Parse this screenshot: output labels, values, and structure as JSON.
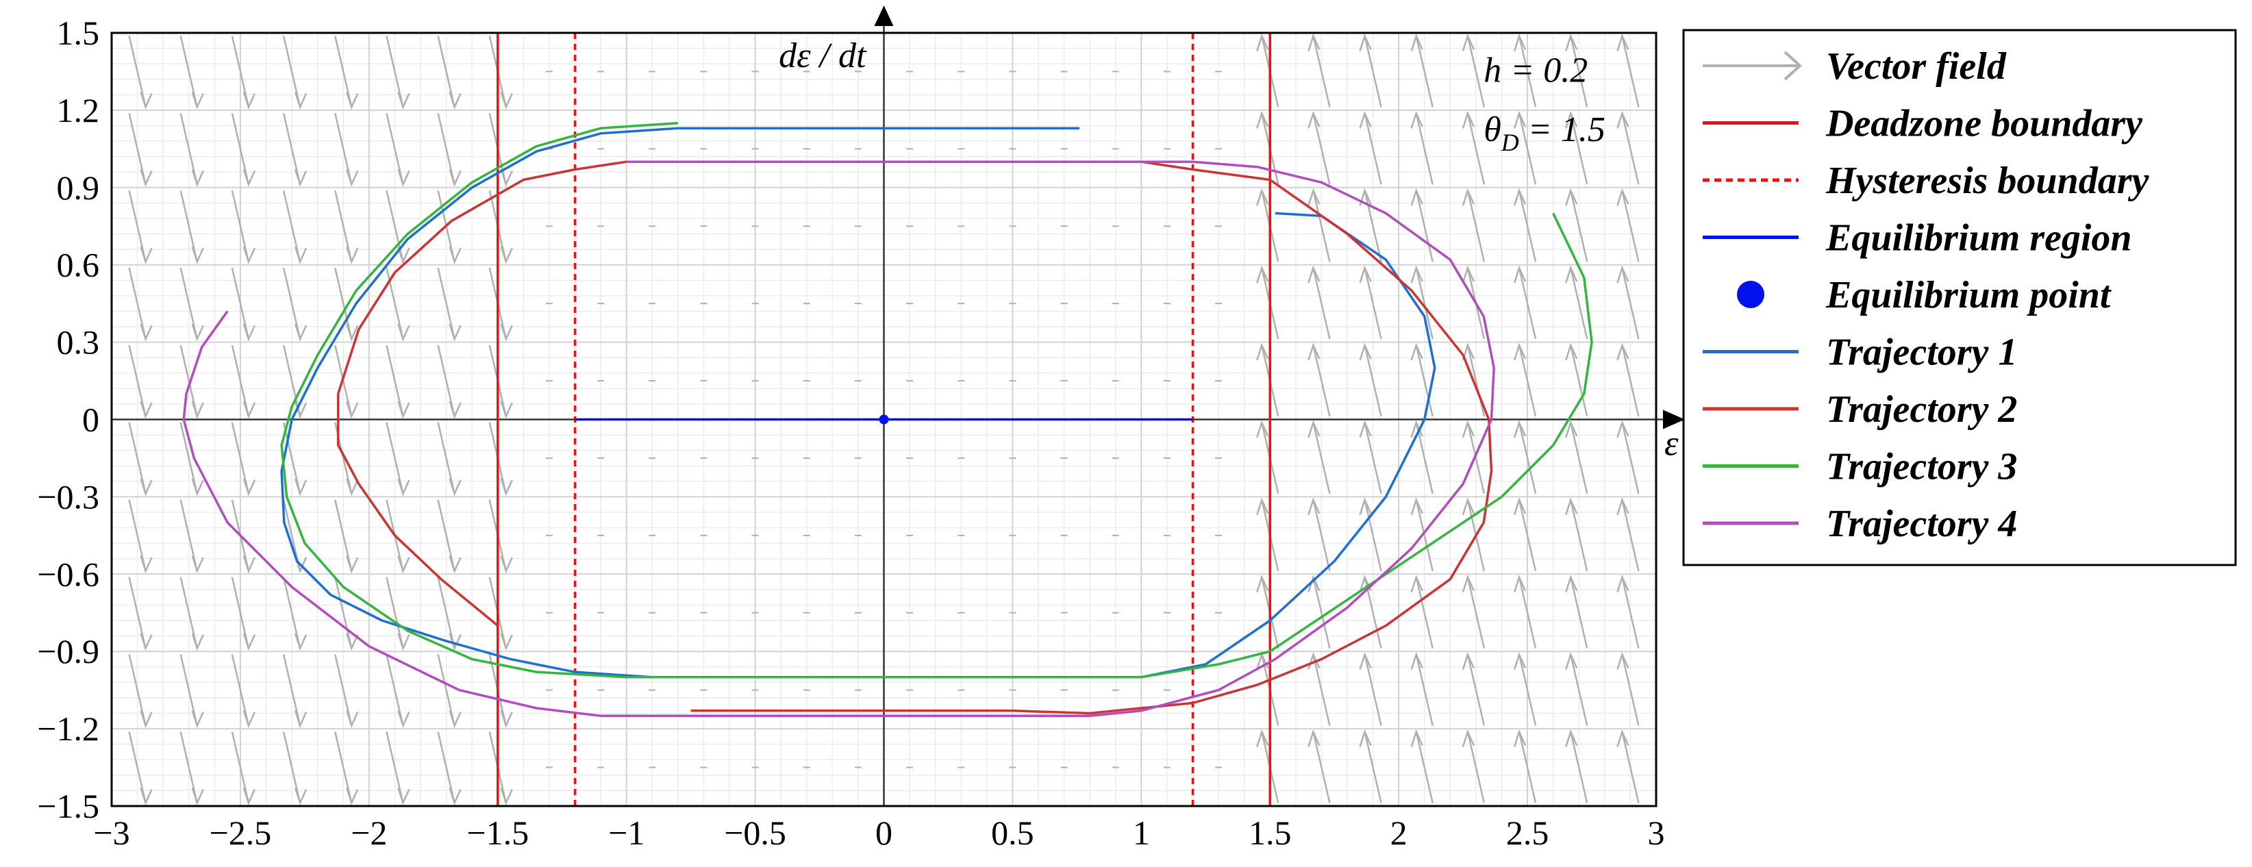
{
  "chart_data": {
    "type": "line",
    "title": "",
    "xlabel": "ε",
    "ylabel": "dε / dt",
    "xlim": [
      -3,
      3
    ],
    "ylim": [
      -1.5,
      1.5
    ],
    "xticks": [
      -3,
      -2.5,
      -2,
      -1.5,
      -1,
      -0.5,
      0,
      0.5,
      1,
      1.5,
      2,
      2.5,
      3
    ],
    "xtick_labels": [
      "−3",
      "−2.5",
      "−2",
      "−1.5",
      "−1",
      "−0.5",
      "0",
      "0.5",
      "1",
      "1.5",
      "2",
      "2.5",
      "3"
    ],
    "yticks": [
      -1.5,
      -1.2,
      -0.9,
      -0.6,
      -0.3,
      0,
      0.3,
      0.6,
      0.9,
      1.2,
      1.5
    ],
    "ytick_labels": [
      "−1.5",
      "−1.2",
      "−0.9",
      "−0.6",
      "−0.3",
      "0",
      "0.3",
      "0.6",
      "0.9",
      "1.2",
      "1.5"
    ],
    "grid": true,
    "legend_position": "outside-right",
    "annotations": {
      "h_label": "h = 0.2",
      "theta_label": "θ",
      "theta_sub": "D",
      "theta_value": " = 1.5"
    },
    "parameters": {
      "h": 0.2,
      "theta_D": 1.5
    },
    "legend": [
      {
        "name": "Vector field",
        "color": "#b0b0b0",
        "style": "arrow"
      },
      {
        "name": "Deadzone boundary",
        "color": "#ee1111",
        "style": "solid"
      },
      {
        "name": "Hysteresis boundary",
        "color": "#ee1111",
        "style": "dotted"
      },
      {
        "name": "Equilibrium region",
        "color": "#0011ee",
        "style": "solid"
      },
      {
        "name": "Equilibrium point",
        "color": "#0011ee",
        "style": "dot"
      },
      {
        "name": "Trajectory 1",
        "color": "#1f6fd0",
        "style": "solid"
      },
      {
        "name": "Trajectory 2",
        "color": "#cc3333",
        "style": "solid"
      },
      {
        "name": "Trajectory 3",
        "color": "#33b540",
        "style": "solid"
      },
      {
        "name": "Trajectory 4",
        "color": "#b24cc0",
        "style": "solid"
      }
    ],
    "deadzone_boundary": {
      "x": [
        -1.5,
        1.5
      ],
      "color": "#ee1111"
    },
    "hysteresis_boundary": {
      "x": [
        -1.2,
        1.2
      ],
      "color": "#ee1111"
    },
    "equilibrium_region": {
      "x": [
        -1.2,
        1.2
      ],
      "y": 0,
      "color": "#0011ee"
    },
    "equilibrium_point": {
      "x": 0,
      "y": 0,
      "color": "#0011ee"
    },
    "vector_field": {
      "color": "#b0b0b0",
      "x_grid": [
        -2.9,
        -2.7,
        -2.5,
        -2.3,
        -2.1,
        -1.9,
        -1.7,
        -1.5,
        -1.3,
        -1.1,
        -0.9,
        -0.7,
        -0.5,
        -0.3,
        -0.1,
        0.1,
        0.3,
        0.5,
        0.7,
        0.9,
        1.1,
        1.3,
        1.5,
        1.7,
        1.9,
        2.1,
        2.3,
        2.5,
        2.7,
        2.9
      ],
      "y_grid": [
        1.35,
        1.05,
        0.75,
        0.45,
        0.15,
        -0.15,
        -0.45,
        -0.75,
        -1.05,
        -1.35
      ]
    },
    "series": [
      {
        "name": "Trajectory 1",
        "color": "#1f6fd0",
        "x": [
          0.76,
          0.2,
          -0.4,
          -0.8,
          -1.1,
          -1.35,
          -1.6,
          -1.85,
          -2.05,
          -2.2,
          -2.3,
          -2.34,
          -2.33,
          -2.28,
          -2.15,
          -1.95,
          -1.7,
          -1.45,
          -1.2,
          -0.9,
          -0.5,
          0,
          0.5,
          1.0,
          1.25,
          1.5,
          1.75,
          1.95,
          2.1,
          2.14,
          2.1,
          1.95,
          1.7,
          1.52
        ],
        "y": [
          1.13,
          1.13,
          1.13,
          1.13,
          1.11,
          1.04,
          0.9,
          0.7,
          0.45,
          0.2,
          0,
          -0.2,
          -0.4,
          -0.55,
          -0.68,
          -0.78,
          -0.86,
          -0.93,
          -0.98,
          -1.0,
          -1.0,
          -1.0,
          -1.0,
          -1.0,
          -0.95,
          -0.78,
          -0.55,
          -0.3,
          0,
          0.2,
          0.4,
          0.62,
          0.79,
          0.8
        ]
      },
      {
        "name": "Trajectory 2",
        "color": "#cc3333",
        "x": [
          -1.5,
          -1.72,
          -1.9,
          -2.04,
          -2.12,
          -2.12,
          -2.04,
          -1.9,
          -1.68,
          -1.4,
          -1.2,
          -1.0,
          -0.5,
          0,
          0.5,
          1.0,
          1.2,
          1.5,
          1.8,
          2.05,
          2.25,
          2.35,
          2.36,
          2.33,
          2.2,
          1.95,
          1.7,
          1.45,
          1.2,
          1.0,
          0.8,
          0.5,
          0,
          -0.75
        ],
        "y": [
          -0.8,
          -0.62,
          -0.45,
          -0.25,
          -0.1,
          0.1,
          0.35,
          0.57,
          0.77,
          0.93,
          0.97,
          1.0,
          1.0,
          1.0,
          1.0,
          1.0,
          0.97,
          0.93,
          0.72,
          0.5,
          0.25,
          0,
          -0.2,
          -0.4,
          -0.62,
          -0.8,
          -0.93,
          -1.03,
          -1.1,
          -1.12,
          -1.14,
          -1.13,
          -1.13,
          -1.13
        ]
      },
      {
        "name": "Trajectory 3",
        "color": "#33b540",
        "x": [
          -0.8,
          -1.1,
          -1.35,
          -1.6,
          -1.85,
          -2.05,
          -2.2,
          -2.3,
          -2.34,
          -2.32,
          -2.25,
          -2.1,
          -1.85,
          -1.6,
          -1.35,
          -1.0,
          -0.5,
          0,
          0.5,
          1.0,
          1.3,
          1.5,
          1.8,
          2.1,
          2.4,
          2.6,
          2.72,
          2.75,
          2.72,
          2.6
        ],
        "y": [
          1.15,
          1.13,
          1.06,
          0.92,
          0.72,
          0.5,
          0.25,
          0.05,
          -0.1,
          -0.3,
          -0.48,
          -0.65,
          -0.82,
          -0.93,
          -0.98,
          -1.0,
          -1.0,
          -1.0,
          -1.0,
          -1.0,
          -0.95,
          -0.9,
          -0.7,
          -0.5,
          -0.3,
          -0.1,
          0.1,
          0.3,
          0.55,
          0.8
        ]
      },
      {
        "name": "Trajectory 4",
        "color": "#b24cc0",
        "x": [
          -2.55,
          -2.65,
          -2.71,
          -2.72,
          -2.68,
          -2.55,
          -2.3,
          -2.0,
          -1.65,
          -1.35,
          -1.1,
          -0.5,
          0,
          0.5,
          0.8,
          1.0,
          1.3,
          1.52,
          1.8,
          2.05,
          2.25,
          2.36,
          2.37,
          2.33,
          2.2,
          1.95,
          1.7,
          1.45,
          1.2,
          1.0,
          0.5,
          0,
          -0.5,
          -1.0
        ],
        "y": [
          0.42,
          0.28,
          0.1,
          0,
          -0.15,
          -0.4,
          -0.65,
          -0.88,
          -1.05,
          -1.12,
          -1.15,
          -1.15,
          -1.15,
          -1.15,
          -1.15,
          -1.13,
          -1.05,
          -0.93,
          -0.73,
          -0.5,
          -0.25,
          0,
          0.2,
          0.4,
          0.62,
          0.8,
          0.92,
          0.98,
          1.0,
          1.0,
          1.0,
          1.0,
          1.0,
          1.0
        ]
      }
    ]
  }
}
